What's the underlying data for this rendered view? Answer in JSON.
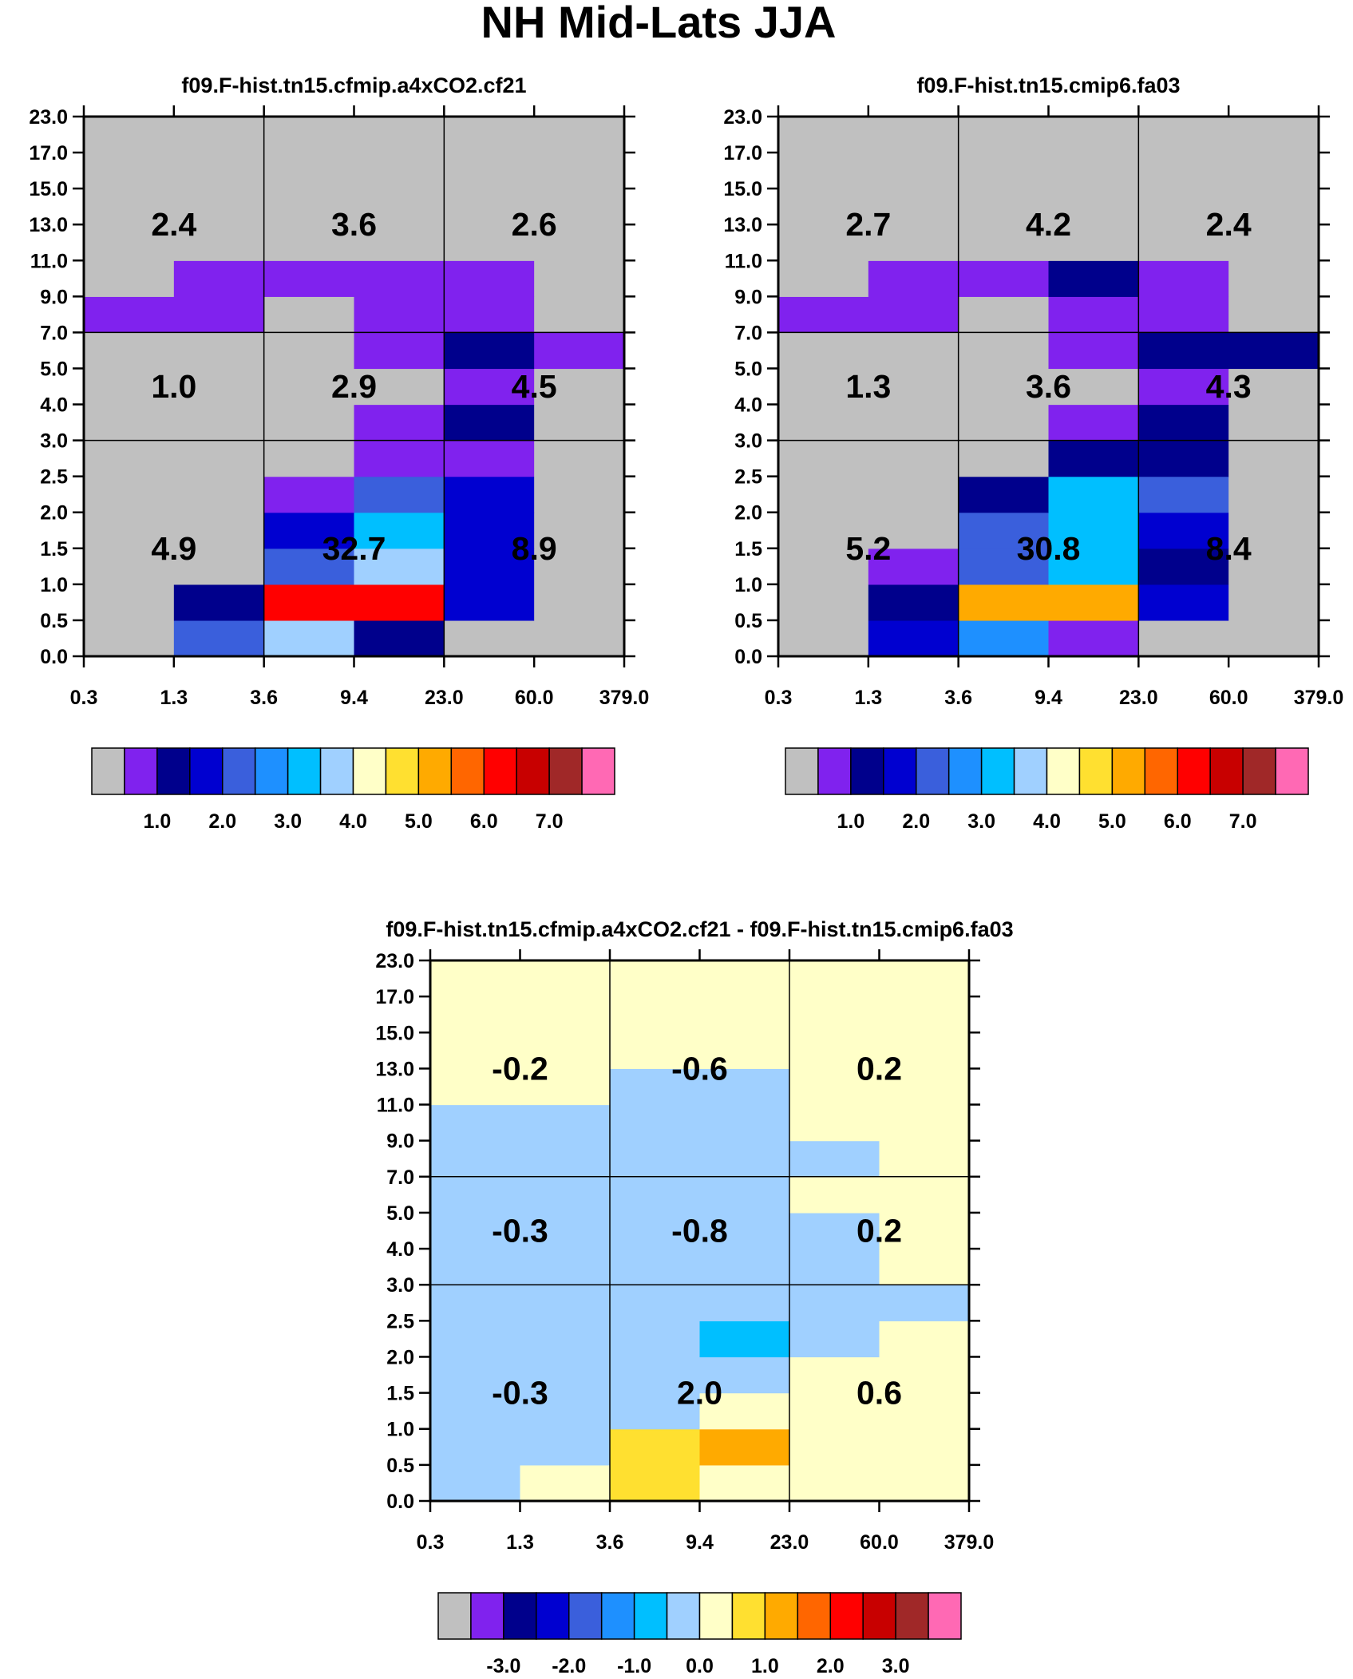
{
  "title": "NH Mid-Lats JJA",
  "axes": {
    "x_ticks": [
      "0.3",
      "1.3",
      "3.6",
      "9.4",
      "23.0",
      "60.0",
      "379.0"
    ],
    "y_ticks": [
      "0.0",
      "0.5",
      "1.0",
      "1.5",
      "2.0",
      "2.5",
      "3.0",
      "4.0",
      "5.0",
      "7.0",
      "9.0",
      "11.0",
      "13.0",
      "15.0",
      "17.0",
      "23.0"
    ]
  },
  "palette": [
    "#c0c0c0",
    "#8022ee",
    "#00008c",
    "#0000d0",
    "#3a5fdc",
    "#1e90ff",
    "#00bfff",
    "#a0d0ff",
    "#ffffc8",
    "#ffe030",
    "#ffaa00",
    "#ff6600",
    "#ff0000",
    "#c80000",
    "#a02828",
    "#ff69b4"
  ],
  "chart_data": [
    {
      "type": "heatmap",
      "title": "f09.F-hist.tn15.cfmip.a4xCO2.cf21",
      "x_edges": [
        "0.3",
        "1.3",
        "3.6",
        "9.4",
        "23.0",
        "60.0",
        "379.0"
      ],
      "y_edges": [
        "0.0",
        "0.5",
        "1.0",
        "1.5",
        "2.0",
        "2.5",
        "3.0",
        "4.0",
        "5.0",
        "7.0",
        "9.0",
        "11.0",
        "13.0",
        "15.0",
        "17.0",
        "23.0"
      ],
      "cells_color_index_bottom_to_top": [
        [
          0,
          4,
          7,
          2,
          0,
          0
        ],
        [
          0,
          2,
          12,
          12,
          3,
          0
        ],
        [
          0,
          0,
          4,
          7,
          3,
          0
        ],
        [
          0,
          0,
          3,
          6,
          3,
          0
        ],
        [
          0,
          0,
          1,
          4,
          3,
          0
        ],
        [
          0,
          0,
          0,
          1,
          1,
          0
        ],
        [
          0,
          0,
          0,
          1,
          2,
          0
        ],
        [
          0,
          0,
          0,
          0,
          1,
          0
        ],
        [
          0,
          0,
          0,
          1,
          2,
          1
        ],
        [
          1,
          1,
          0,
          1,
          1,
          0
        ],
        [
          0,
          1,
          1,
          1,
          1,
          0
        ],
        [
          0,
          0,
          0,
          0,
          0,
          0
        ],
        [
          0,
          0,
          0,
          0,
          0,
          0
        ],
        [
          0,
          0,
          0,
          0,
          0,
          0
        ],
        [
          0,
          0,
          0,
          0,
          0,
          0
        ]
      ],
      "block_values": [
        [
          "4.9",
          "32.7",
          "8.9"
        ],
        [
          "1.0",
          "2.9",
          "4.5"
        ],
        [
          "2.4",
          "3.6",
          "2.6"
        ]
      ],
      "colorbar_labels": [
        "1.0",
        "2.0",
        "3.0",
        "4.0",
        "5.0",
        "6.0",
        "7.0"
      ]
    },
    {
      "type": "heatmap",
      "title": "f09.F-hist.tn15.cmip6.fa03",
      "x_edges": [
        "0.3",
        "1.3",
        "3.6",
        "9.4",
        "23.0",
        "60.0",
        "379.0"
      ],
      "y_edges": [
        "0.0",
        "0.5",
        "1.0",
        "1.5",
        "2.0",
        "2.5",
        "3.0",
        "4.0",
        "5.0",
        "7.0",
        "9.0",
        "11.0",
        "13.0",
        "15.0",
        "17.0",
        "23.0"
      ],
      "cells_color_index_bottom_to_top": [
        [
          0,
          3,
          5,
          1,
          0,
          0
        ],
        [
          0,
          2,
          10,
          10,
          3,
          0
        ],
        [
          0,
          1,
          4,
          6,
          2,
          0
        ],
        [
          0,
          0,
          4,
          6,
          3,
          0
        ],
        [
          0,
          0,
          2,
          6,
          4,
          0
        ],
        [
          0,
          0,
          0,
          2,
          2,
          0
        ],
        [
          0,
          0,
          0,
          1,
          2,
          0
        ],
        [
          0,
          0,
          0,
          0,
          1,
          0
        ],
        [
          0,
          0,
          0,
          1,
          2,
          2
        ],
        [
          1,
          1,
          0,
          1,
          1,
          0
        ],
        [
          0,
          1,
          1,
          2,
          1,
          0
        ],
        [
          0,
          0,
          0,
          0,
          0,
          0
        ],
        [
          0,
          0,
          0,
          0,
          0,
          0
        ],
        [
          0,
          0,
          0,
          0,
          0,
          0
        ],
        [
          0,
          0,
          0,
          0,
          0,
          0
        ]
      ],
      "block_values": [
        [
          "5.2",
          "30.8",
          "8.4"
        ],
        [
          "1.3",
          "3.6",
          "4.3"
        ],
        [
          "2.7",
          "4.2",
          "2.4"
        ]
      ],
      "colorbar_labels": [
        "1.0",
        "2.0",
        "3.0",
        "4.0",
        "5.0",
        "6.0",
        "7.0"
      ]
    },
    {
      "type": "heatmap",
      "title": "f09.F-hist.tn15.cfmip.a4xCO2.cf21 - f09.F-hist.tn15.cmip6.fa03",
      "x_edges": [
        "0.3",
        "1.3",
        "3.6",
        "9.4",
        "23.0",
        "60.0",
        "379.0"
      ],
      "y_edges": [
        "0.0",
        "0.5",
        "1.0",
        "1.5",
        "2.0",
        "2.5",
        "3.0",
        "4.0",
        "5.0",
        "7.0",
        "9.0",
        "11.0",
        "13.0",
        "15.0",
        "17.0",
        "23.0"
      ],
      "cells_color_index_bottom_to_top": [
        [
          7,
          8,
          9,
          8,
          8,
          8
        ],
        [
          7,
          7,
          9,
          10,
          8,
          8
        ],
        [
          7,
          7,
          7,
          8,
          8,
          8
        ],
        [
          7,
          7,
          7,
          7,
          8,
          8
        ],
        [
          7,
          7,
          7,
          6,
          7,
          8
        ],
        [
          7,
          7,
          7,
          7,
          7,
          7
        ],
        [
          7,
          7,
          7,
          7,
          7,
          8
        ],
        [
          7,
          7,
          7,
          7,
          7,
          8
        ],
        [
          7,
          7,
          7,
          7,
          8,
          8
        ],
        [
          7,
          7,
          7,
          7,
          7,
          8
        ],
        [
          7,
          7,
          7,
          7,
          8,
          8
        ],
        [
          8,
          8,
          7,
          7,
          8,
          8
        ],
        [
          8,
          8,
          8,
          8,
          8,
          8
        ],
        [
          8,
          8,
          8,
          8,
          8,
          8
        ],
        [
          8,
          8,
          8,
          8,
          8,
          8
        ]
      ],
      "block_values": [
        [
          "-0.3",
          "2.0",
          "0.6"
        ],
        [
          "-0.3",
          "-0.8",
          "0.2"
        ],
        [
          "-0.2",
          "-0.6",
          "0.2"
        ]
      ],
      "colorbar_labels": [
        "-3.0",
        "-2.0",
        "-1.0",
        "0.0",
        "1.0",
        "2.0",
        "3.0"
      ]
    }
  ]
}
